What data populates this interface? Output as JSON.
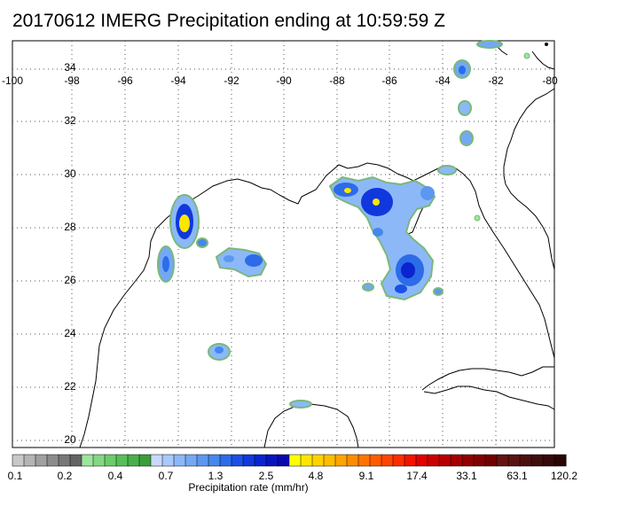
{
  "title": "20170612 IMERG Precipitation ending at 10:59:59 Z",
  "map": {
    "lon_labels": [
      "-100",
      "-98",
      "-96",
      "-94",
      "-92",
      "-90",
      "-88",
      "-86",
      "-84",
      "-82",
      "-80"
    ],
    "lat_labels": [
      "34",
      "32",
      "30",
      "28",
      "26",
      "24",
      "22",
      "20"
    ],
    "grid": "dotted"
  },
  "colorbar": {
    "title": "Precipitation rate (mm/hr)",
    "labels": [
      "0.1",
      "0.2",
      "0.4",
      "0.7",
      "1.3",
      "2.5",
      "4.8",
      "9.1",
      "17.4",
      "33.1",
      "63.1",
      "120.2"
    ],
    "colors": [
      "#c8c8c8",
      "#b4b4b4",
      "#a0a0a0",
      "#8c8c8c",
      "#787878",
      "#646464",
      "#9ae69a",
      "#82d882",
      "#6ccc6c",
      "#58bf58",
      "#48b048",
      "#3a9e3a",
      "#c8d8ff",
      "#a8c8ff",
      "#8cb8f8",
      "#74a8f4",
      "#5c98f0",
      "#4488ec",
      "#2c6ce8",
      "#1c50e4",
      "#1038dc",
      "#0a24d0",
      "#0814c0",
      "#0808b0",
      "#ffff00",
      "#ffe600",
      "#ffd200",
      "#ffbc00",
      "#ffa400",
      "#ff8c00",
      "#ff7400",
      "#ff5c00",
      "#ff4400",
      "#ff2c00",
      "#f01400",
      "#e00000",
      "#cc0000",
      "#b80000",
      "#a40000",
      "#900000",
      "#800000",
      "#700000",
      "#641414",
      "#581414",
      "#4c1010",
      "#400c0c",
      "#360808",
      "#2c0404"
    ]
  }
}
